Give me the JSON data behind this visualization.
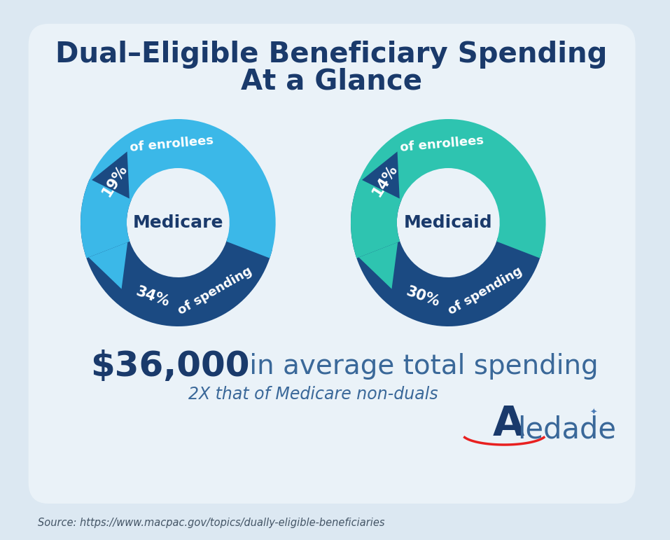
{
  "title_line1": "Dual–Eligible Beneficiary Spending",
  "title_line2": "At a Glance",
  "title_color": "#1a3a6b",
  "background_color": "#dce8f2",
  "card_color": "#eaf2f8",
  "medicare_label": "Medicare",
  "medicaid_label": "Medicaid",
  "medicare_top_pct": "19%",
  "medicare_top_text": "of enrollees",
  "medicare_bot_pct": "34%",
  "medicare_bot_text": "of spending",
  "medicaid_top_pct": "14%",
  "medicaid_top_text": "of enrollees",
  "medicaid_bot_pct": "30%",
  "medicaid_bot_text": "of spending",
  "arrow_dark_blue": "#1b4a82",
  "arrow_light_blue": "#3bb8e8",
  "arrow_teal": "#2ec4b0",
  "center_label_color": "#1a3a6b",
  "spending_bold": "$36,000",
  "spending_text": " in average total spending",
  "spending_sub": "2X that of Medicare non-duals",
  "spending_bold_color": "#1a3a6b",
  "spending_text_color": "#3a6899",
  "source_text": "Source: https://www.macpac.gov/topics/dually-eligible-beneficiaries"
}
